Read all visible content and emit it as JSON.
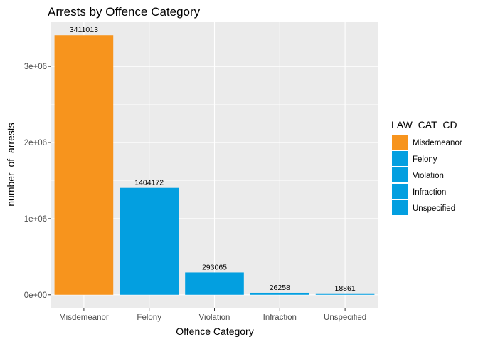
{
  "chart_data": {
    "type": "bar",
    "title": "Arrests by Offence Category",
    "xlabel": "Offence Category",
    "ylabel": "number_of_arrests",
    "categories": [
      "Misdemeanor",
      "Felony",
      "Violation",
      "Infraction",
      "Unspecified"
    ],
    "values": [
      3411013,
      1404172,
      293065,
      26258,
      18861
    ],
    "data_labels": [
      "3411013",
      "1404172",
      "293065",
      "26258",
      "18861"
    ],
    "yticks": [
      0,
      1000000,
      2000000,
      3000000
    ],
    "ytick_labels": [
      "0e+00",
      "1e+06",
      "2e+06",
      "3e+06"
    ],
    "ylim": [
      -170550,
      3581564
    ],
    "grid": true,
    "legend": {
      "title": "LAW_CAT_CD",
      "position": "right",
      "entries": [
        "Misdemeanor",
        "Felony",
        "Violation",
        "Infraction",
        "Unspecified"
      ]
    },
    "colors": {
      "Misdemeanor": "#F7941D",
      "Felony": "#039FE0",
      "Violation": "#039FE0",
      "Infraction": "#039FE0",
      "Unspecified": "#039FE0",
      "panel": "#EBEBEB",
      "grid": "#FFFFFF"
    }
  }
}
